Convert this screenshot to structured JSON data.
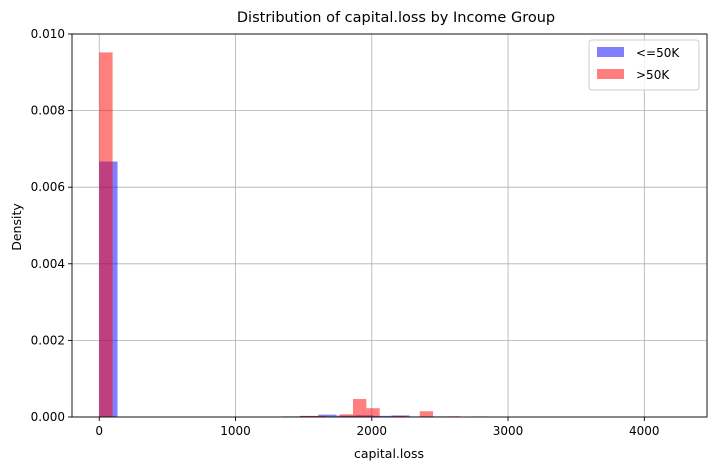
{
  "chart_data": {
    "type": "histogram",
    "title": "Distribution of capital.loss by Income Group",
    "xlabel": "capital.loss",
    "ylabel": "Density",
    "xlim": [
      -200,
      4460
    ],
    "ylim": [
      0,
      0.01
    ],
    "xticks": [
      0,
      1000,
      2000,
      3000,
      4000
    ],
    "yticks": [
      0.0,
      0.002,
      0.004,
      0.006,
      0.008,
      0.01
    ],
    "xtick_labels": [
      "0",
      "1000",
      "2000",
      "3000",
      "4000"
    ],
    "ytick_labels": [
      "0.000",
      "0.002",
      "0.004",
      "0.006",
      "0.008",
      "0.010"
    ],
    "grid": true,
    "legend_position": "upper-right",
    "series": [
      {
        "name": "<=50K",
        "color": "#0000ff",
        "opacity": 0.5,
        "bins": [
          {
            "x0": 0,
            "x1": 134,
            "value": 0.00667
          },
          {
            "x0": 1340,
            "x1": 1474,
            "value": 1e-05
          },
          {
            "x0": 1474,
            "x1": 1608,
            "value": 2.5e-05
          },
          {
            "x0": 1608,
            "x1": 1742,
            "value": 6e-05
          },
          {
            "x0": 1742,
            "x1": 1876,
            "value": 3.5e-05
          },
          {
            "x0": 1876,
            "x1": 2010,
            "value": 4.5e-05
          },
          {
            "x0": 2010,
            "x1": 2144,
            "value": 3e-05
          },
          {
            "x0": 2144,
            "x1": 2278,
            "value": 4e-05
          },
          {
            "x0": 2278,
            "x1": 2412,
            "value": 1.5e-05
          },
          {
            "x0": 2412,
            "x1": 2546,
            "value": 1e-05
          }
        ]
      },
      {
        "name": ">50K",
        "color": "#ff0000",
        "opacity": 0.5,
        "bins": [
          {
            "x0": 0,
            "x1": 98,
            "value": 0.00952
          },
          {
            "x0": 1470,
            "x1": 1568,
            "value": 3e-05
          },
          {
            "x0": 1568,
            "x1": 1666,
            "value": 3e-05
          },
          {
            "x0": 1764,
            "x1": 1862,
            "value": 7e-05
          },
          {
            "x0": 1862,
            "x1": 1960,
            "value": 0.00047
          },
          {
            "x0": 1960,
            "x1": 2058,
            "value": 0.00023
          },
          {
            "x0": 2156,
            "x1": 2254,
            "value": 3e-05
          },
          {
            "x0": 2352,
            "x1": 2450,
            "value": 0.00015
          },
          {
            "x0": 2548,
            "x1": 2646,
            "value": 2e-05
          },
          {
            "x0": 2744,
            "x1": 2842,
            "value": 1.5e-05
          }
        ]
      }
    ]
  }
}
